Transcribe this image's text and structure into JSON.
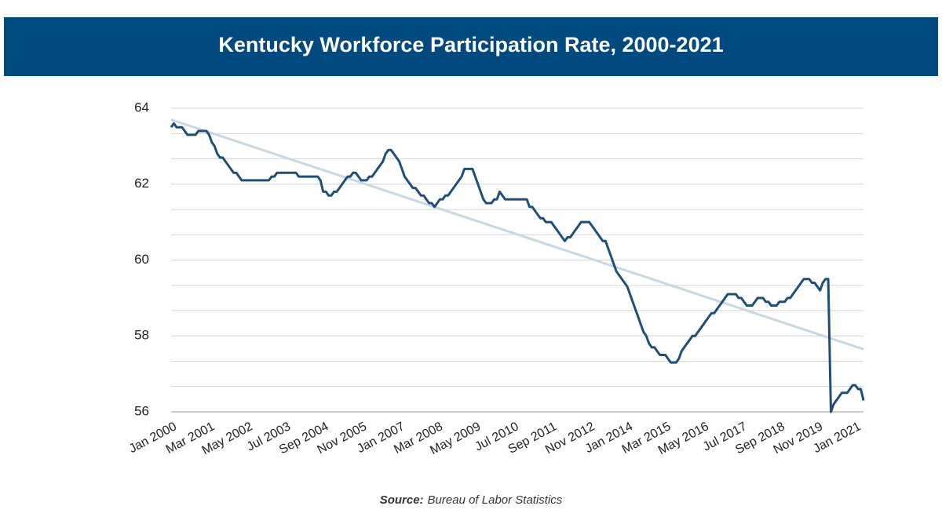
{
  "chart_data": {
    "type": "line",
    "title": "Kentucky Workforce Participation Rate, 2000-2021",
    "source_label": "Source:",
    "source": "Bureau of Labor Statistics",
    "categories": [
      "Jan 2000",
      null,
      null,
      null,
      null,
      null,
      null,
      null,
      null,
      null,
      null,
      null,
      null,
      null,
      "Mar 2001",
      null,
      null,
      null,
      null,
      null,
      null,
      null,
      null,
      null,
      null,
      null,
      null,
      null,
      "May 2002",
      null,
      null,
      null,
      null,
      null,
      null,
      null,
      null,
      null,
      null,
      null,
      null,
      null,
      "Jul 2003",
      null,
      null,
      null,
      null,
      null,
      null,
      null,
      null,
      null,
      null,
      null,
      null,
      null,
      "Sep 2004",
      null,
      null,
      null,
      null,
      null,
      null,
      null,
      null,
      null,
      null,
      null,
      null,
      null,
      "Nov 2005",
      null,
      null,
      null,
      null,
      null,
      null,
      null,
      null,
      null,
      null,
      null,
      null,
      null,
      "Jan 2007",
      null,
      null,
      null,
      null,
      null,
      null,
      null,
      null,
      null,
      null,
      null,
      null,
      null,
      "Mar 2008",
      null,
      null,
      null,
      null,
      null,
      null,
      null,
      null,
      null,
      null,
      null,
      null,
      null,
      "May 2009",
      null,
      null,
      null,
      null,
      null,
      null,
      null,
      null,
      null,
      null,
      null,
      null,
      null,
      "Jul 2010",
      null,
      null,
      null,
      null,
      null,
      null,
      null,
      null,
      null,
      null,
      null,
      null,
      null,
      "Sep 2011",
      null,
      null,
      null,
      null,
      null,
      null,
      null,
      null,
      null,
      null,
      null,
      null,
      null,
      "Nov 2012",
      null,
      null,
      null,
      null,
      null,
      null,
      null,
      null,
      null,
      null,
      null,
      null,
      null,
      "Jan 2014",
      null,
      null,
      null,
      null,
      null,
      null,
      null,
      null,
      null,
      null,
      null,
      null,
      null,
      "Mar 2015",
      null,
      null,
      null,
      null,
      null,
      null,
      null,
      null,
      null,
      null,
      null,
      null,
      null,
      "May 2016",
      null,
      null,
      null,
      null,
      null,
      null,
      null,
      null,
      null,
      null,
      null,
      null,
      null,
      "Jul 2017",
      null,
      null,
      null,
      null,
      null,
      null,
      null,
      null,
      null,
      null,
      null,
      null,
      null,
      "Sep 2018",
      null,
      null,
      null,
      null,
      null,
      null,
      null,
      null,
      null,
      null,
      null,
      null,
      null,
      "Nov 2019",
      null,
      null,
      null,
      null,
      null,
      null,
      null,
      null,
      null,
      null,
      null,
      null,
      null,
      "Jan 2021",
      null,
      null,
      null
    ],
    "color": "#1f4e79",
    "values": [
      63.5,
      63.6,
      63.5,
      63.5,
      63.5,
      63.4,
      63.3,
      63.3,
      63.3,
      63.3,
      63.4,
      63.4,
      63.4,
      63.4,
      63.3,
      63.1,
      63.0,
      62.8,
      62.7,
      62.7,
      62.6,
      62.5,
      62.4,
      62.3,
      62.3,
      62.2,
      62.1,
      62.1,
      62.1,
      62.1,
      62.1,
      62.1,
      62.1,
      62.1,
      62.1,
      62.1,
      62.1,
      62.2,
      62.2,
      62.3,
      62.3,
      62.3,
      62.3,
      62.3,
      62.3,
      62.3,
      62.3,
      62.2,
      62.2,
      62.2,
      62.2,
      62.2,
      62.2,
      62.2,
      62.2,
      62.1,
      61.8,
      61.8,
      61.7,
      61.7,
      61.8,
      61.8,
      61.9,
      62.0,
      62.1,
      62.2,
      62.2,
      62.3,
      62.3,
      62.2,
      62.1,
      62.1,
      62.1,
      62.2,
      62.2,
      62.3,
      62.4,
      62.5,
      62.6,
      62.8,
      62.9,
      62.9,
      62.8,
      62.7,
      62.6,
      62.4,
      62.2,
      62.1,
      62.0,
      61.9,
      61.9,
      61.8,
      61.7,
      61.7,
      61.6,
      61.5,
      61.5,
      61.4,
      61.5,
      61.6,
      61.6,
      61.7,
      61.7,
      61.8,
      61.9,
      62.0,
      62.1,
      62.2,
      62.4,
      62.4,
      62.4,
      62.4,
      62.2,
      62.0,
      61.8,
      61.6,
      61.5,
      61.5,
      61.5,
      61.6,
      61.6,
      61.8,
      61.7,
      61.6,
      61.6,
      61.6,
      61.6,
      61.6,
      61.6,
      61.6,
      61.6,
      61.6,
      61.4,
      61.4,
      61.3,
      61.2,
      61.1,
      61.1,
      61.0,
      61.0,
      61.0,
      60.9,
      60.8,
      60.7,
      60.6,
      60.5,
      60.6,
      60.6,
      60.7,
      60.8,
      60.9,
      61.0,
      61.0,
      61.0,
      61.0,
      60.9,
      60.8,
      60.7,
      60.6,
      60.5,
      60.5,
      60.3,
      60.1,
      59.9,
      59.7,
      59.6,
      59.5,
      59.4,
      59.3,
      59.1,
      58.9,
      58.7,
      58.5,
      58.3,
      58.1,
      58.0,
      57.8,
      57.7,
      57.7,
      57.6,
      57.5,
      57.5,
      57.5,
      57.4,
      57.3,
      57.3,
      57.3,
      57.4,
      57.6,
      57.7,
      57.8,
      57.9,
      58.0,
      58.0,
      58.1,
      58.2,
      58.3,
      58.4,
      58.5,
      58.6,
      58.6,
      58.7,
      58.8,
      58.9,
      59.0,
      59.1,
      59.1,
      59.1,
      59.1,
      59.0,
      59.0,
      58.9,
      58.8,
      58.8,
      58.8,
      58.9,
      59.0,
      59.0,
      59.0,
      58.9,
      58.9,
      58.8,
      58.8,
      58.8,
      58.9,
      58.9,
      58.9,
      59.0,
      59.0,
      59.1,
      59.2,
      59.3,
      59.4,
      59.5,
      59.5,
      59.5,
      59.4,
      59.4,
      59.3,
      59.2,
      59.4,
      59.5,
      59.5,
      56.0,
      56.2,
      56.3,
      56.4,
      56.5,
      56.5,
      56.5,
      56.6,
      56.7,
      56.7,
      56.6,
      56.6,
      56.3
    ],
    "trendline": {
      "color": "#c9d6e3",
      "values": [
        63.7,
        57.65
      ]
    },
    "ylim": [
      56,
      64
    ],
    "yticks": [
      56,
      58,
      60,
      62,
      64
    ],
    "ygrid": [
      56,
      56.67,
      57.33,
      58,
      58.67,
      59.33,
      60,
      60.67,
      61.33,
      62,
      62.67,
      63.33,
      64
    ],
    "grid": true
  }
}
